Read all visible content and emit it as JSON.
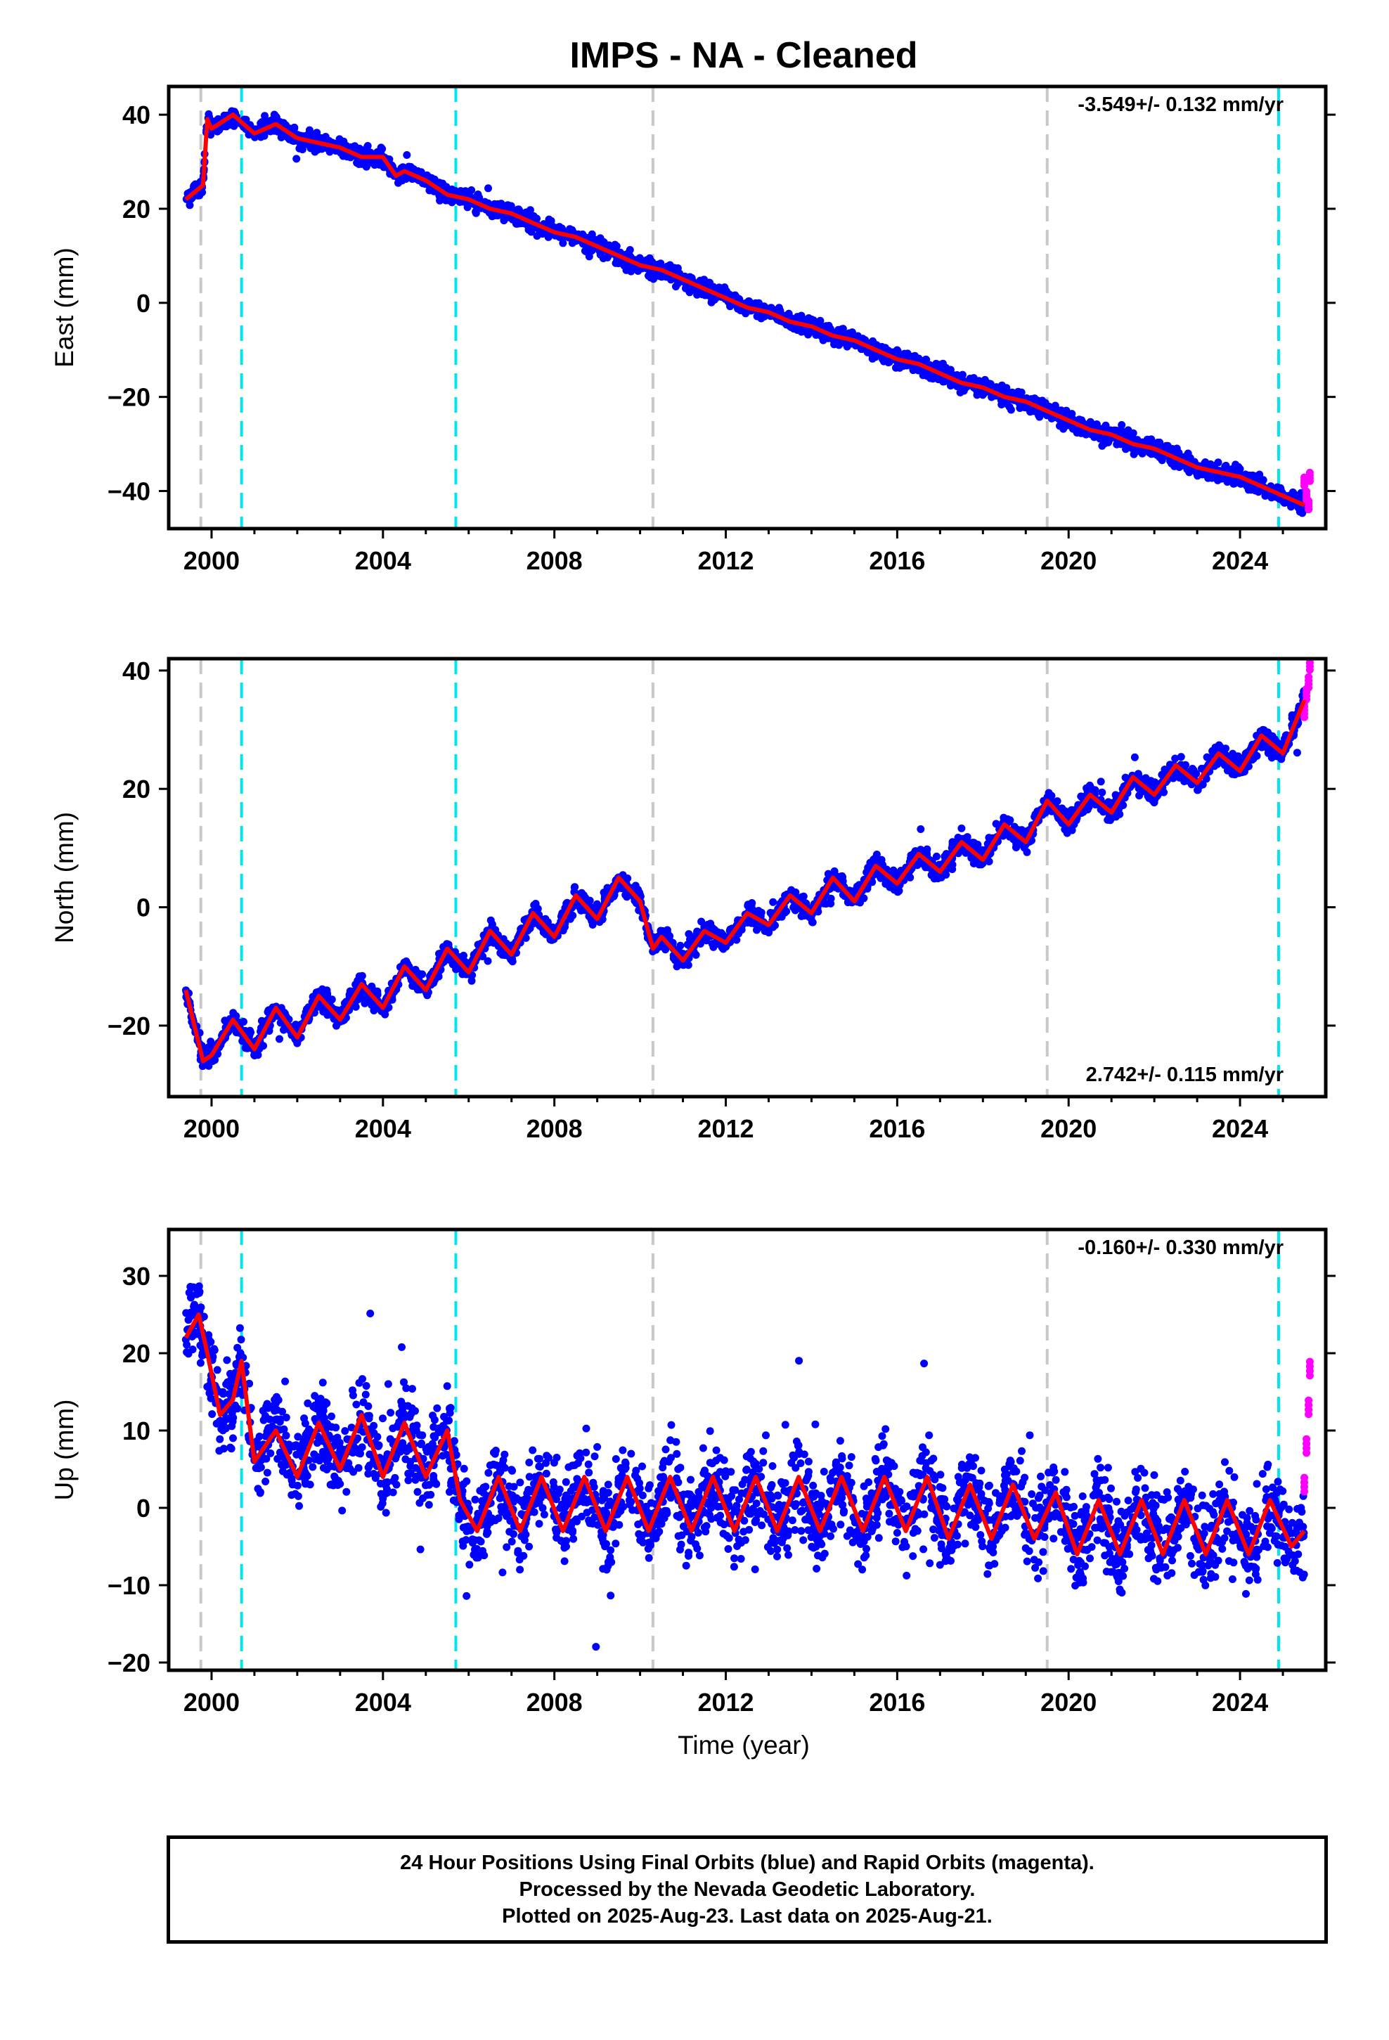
{
  "title": "IMPS  - NA - Cleaned",
  "xlabel": "Time (year)",
  "footer": {
    "line1": "24 Hour Positions Using Final Orbits (blue) and Rapid Orbits (magenta).",
    "line2": "Processed by the Nevada Geodetic Laboratory.",
    "line3": "Plotted on 2025-Aug-23. Last data on 2025-Aug-21."
  },
  "colors": {
    "final_orbits": "#0000ff",
    "rapid_orbits": "#ff00ff",
    "model_fit": "#ff0000",
    "antenna_change": "#00e5ee",
    "equipment_change": "#c8c8c8"
  },
  "chart_data": [
    {
      "type": "scatter",
      "ylabel": "East (mm)",
      "rate_label": "-3.549+/- 0.132 mm/yr",
      "xlim": [
        1999.0,
        2026.0
      ],
      "ylim": [
        -48,
        46
      ],
      "xticks": [
        "2000",
        "2004",
        "2008",
        "2012",
        "2016",
        "2020",
        "2024"
      ],
      "yticks": [
        "40",
        "20",
        "0",
        "−20",
        "−40"
      ],
      "series": [
        {
          "x": [
            1999.4,
            1999.8,
            1999.9,
            2000.0,
            2000.5,
            2001.0,
            2001.5,
            2002.0,
            2002.5,
            2003.0,
            2003.5,
            2004.0,
            2004.3,
            2004.5,
            2005.0,
            2005.5,
            2006.0,
            2006.5,
            2007.0,
            2007.5,
            2008.0,
            2008.5,
            2009.0,
            2009.5,
            2010.0,
            2010.5,
            2011.0,
            2011.5,
            2012.0,
            2012.5,
            2013.0,
            2013.5,
            2014.0,
            2014.5,
            2015.0,
            2015.5,
            2016.0,
            2016.5,
            2017.0,
            2017.5,
            2018.0,
            2018.5,
            2019.0,
            2019.5,
            2020.0,
            2020.5,
            2021.0,
            2021.5,
            2022.0,
            2022.5,
            2023.0,
            2023.5,
            2024.0,
            2024.5,
            2025.0,
            2025.5
          ],
          "y": [
            22,
            25,
            39,
            37,
            40,
            36,
            38,
            35,
            34,
            33,
            31,
            31,
            27,
            28,
            26,
            23,
            22,
            20,
            19,
            17,
            15,
            14,
            12,
            10,
            8,
            7,
            5,
            3,
            1,
            -1,
            -2,
            -4,
            -5,
            -7,
            -8,
            -10,
            -12,
            -13,
            -15,
            -17,
            -18,
            -20,
            -21,
            -23,
            -25,
            -27,
            -28,
            -30,
            -31,
            -33,
            -35,
            -36,
            -37,
            -39,
            -41,
            -43
          ]
        },
        {
          "x": [
            2025.5,
            2025.55,
            2025.6,
            2025.63
          ],
          "y": [
            -38,
            -41,
            -43,
            -37
          ]
        }
      ]
    },
    {
      "type": "scatter",
      "ylabel": "North (mm)",
      "rate_label": "2.742+/- 0.115 mm/yr",
      "xlim": [
        1999.0,
        2026.0
      ],
      "ylim": [
        -32,
        42
      ],
      "xticks": [
        "2000",
        "2004",
        "2008",
        "2012",
        "2016",
        "2020",
        "2024"
      ],
      "yticks": [
        "40",
        "20",
        "0",
        "−20"
      ],
      "series": [
        {
          "x": [
            1999.4,
            1999.8,
            2000.0,
            2000.5,
            2001.0,
            2001.5,
            2002.0,
            2002.5,
            2003.0,
            2003.5,
            2004.0,
            2004.5,
            2005.0,
            2005.5,
            2006.0,
            2006.5,
            2007.0,
            2007.5,
            2008.0,
            2008.5,
            2009.0,
            2009.5,
            2010.0,
            2010.3,
            2010.5,
            2011.0,
            2011.5,
            2012.0,
            2012.5,
            2013.0,
            2013.5,
            2014.0,
            2014.5,
            2015.0,
            2015.5,
            2016.0,
            2016.5,
            2017.0,
            2017.5,
            2018.0,
            2018.5,
            2019.0,
            2019.5,
            2020.0,
            2020.5,
            2021.0,
            2021.5,
            2022.0,
            2022.5,
            2023.0,
            2023.5,
            2024.0,
            2024.5,
            2025.0,
            2025.5
          ],
          "y": [
            -14,
            -26,
            -25,
            -19,
            -24,
            -17,
            -22,
            -15,
            -19,
            -13,
            -17,
            -10,
            -14,
            -7,
            -11,
            -4,
            -8,
            -1,
            -5,
            2,
            -2,
            5,
            1,
            -7,
            -5,
            -9,
            -4,
            -6,
            -1,
            -3,
            2,
            -1,
            5,
            1,
            7,
            4,
            9,
            6,
            11,
            8,
            14,
            11,
            18,
            14,
            19,
            16,
            22,
            19,
            24,
            21,
            26,
            23,
            29,
            26,
            35
          ]
        },
        {
          "x": [
            2025.5,
            2025.55,
            2025.6,
            2025.63
          ],
          "y": [
            33,
            36,
            38,
            41
          ]
        }
      ]
    },
    {
      "type": "scatter",
      "ylabel": "Up (mm)",
      "rate_label": "-0.160+/- 0.330 mm/yr",
      "xlim": [
        1999.0,
        2026.0
      ],
      "ylim": [
        -21,
        36
      ],
      "xticks": [
        "2000",
        "2004",
        "2008",
        "2012",
        "2016",
        "2020",
        "2024"
      ],
      "yticks": [
        "30",
        "20",
        "10",
        "0",
        "−10",
        "−20"
      ],
      "series": [
        {
          "x": [
            1999.4,
            1999.7,
            1999.9,
            2000.2,
            2000.5,
            2000.7,
            2001.0,
            2001.5,
            2002.0,
            2002.5,
            2003.0,
            2003.5,
            2004.0,
            2004.5,
            2005.0,
            2005.5,
            2005.8,
            2006.2,
            2006.7,
            2007.2,
            2007.7,
            2008.2,
            2008.7,
            2009.2,
            2009.7,
            2010.2,
            2010.7,
            2011.2,
            2011.7,
            2012.2,
            2012.7,
            2013.2,
            2013.7,
            2014.2,
            2014.7,
            2015.2,
            2015.7,
            2016.2,
            2016.7,
            2017.2,
            2017.7,
            2018.2,
            2018.7,
            2019.2,
            2019.7,
            2020.2,
            2020.7,
            2021.2,
            2021.7,
            2022.2,
            2022.7,
            2023.2,
            2023.7,
            2024.2,
            2024.7,
            2025.2,
            2025.5
          ],
          "y": [
            22,
            25,
            20,
            12,
            14,
            19,
            6,
            10,
            4,
            11,
            5,
            12,
            4,
            11,
            4,
            10,
            1,
            -3,
            4,
            -3,
            4,
            -3,
            4,
            -3,
            4,
            -3,
            4,
            -3,
            4,
            -3,
            4,
            -3,
            4,
            -3,
            4,
            -3,
            4,
            -3,
            4,
            -4,
            3,
            -4,
            3,
            -4,
            2,
            -6,
            1,
            -6,
            1,
            -6,
            1,
            -6,
            1,
            -6,
            1,
            -5,
            -3
          ]
        },
        {
          "x": [
            2025.5,
            2025.55,
            2025.6,
            2025.63
          ],
          "y": [
            3,
            8,
            13,
            18
          ]
        }
      ]
    }
  ]
}
